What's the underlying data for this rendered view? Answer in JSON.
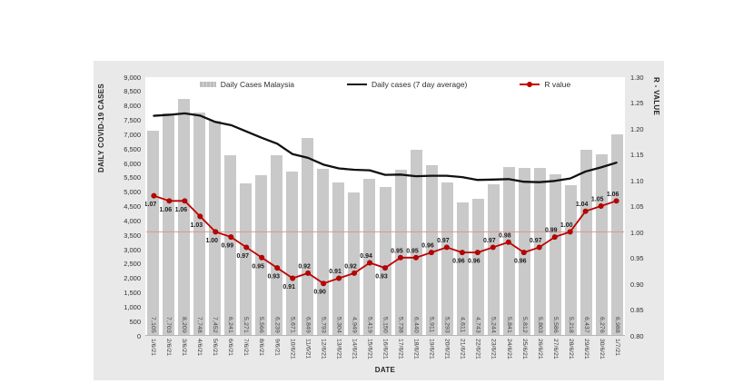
{
  "chart": {
    "y_left_title": "DAILY COVID-19 CASES",
    "y_right_title": "R - VALUE",
    "x_title": "DATE",
    "legend": [
      {
        "label": "Daily Cases Malaysia",
        "type": "bar-swatch"
      },
      {
        "label": "Daily cases (7 day average)",
        "type": "line"
      },
      {
        "label": "R value",
        "type": "line-marker"
      }
    ],
    "colors": {
      "panel_background": "#e9e9e9",
      "plot_background": "#ffffff",
      "bar": "#c9c9c9",
      "average_line": "#111111",
      "r_line": "#c00000",
      "reference_line": "#d99694"
    }
  },
  "chart_data": {
    "type": "bar",
    "categories": [
      "1/6/21",
      "2/6/21",
      "3/6/21",
      "4/6/21",
      "5/6/21",
      "6/6/21",
      "7/6/21",
      "8/6/21",
      "9/6/21",
      "10/6/21",
      "11/6/21",
      "12/6/21",
      "13/6/21",
      "14/6/21",
      "15/6/21",
      "16/6/21",
      "17/6/21",
      "18/6/21",
      "19/6/21",
      "20/6/21",
      "21/6/21",
      "22/6/21",
      "23/6/21",
      "24/6/21",
      "25/6/21",
      "26/6/21",
      "27/6/21",
      "28/6/21",
      "29/6/21",
      "30/6/21",
      "1/7/21"
    ],
    "series": [
      {
        "name": "Daily Cases Malaysia",
        "type": "bar",
        "axis": "left",
        "values": [
          7105,
          7703,
          8209,
          7748,
          7452,
          6241,
          5271,
          5566,
          6239,
          5671,
          6849,
          5793,
          5304,
          4949,
          5419,
          5150,
          5738,
          6440,
          5911,
          5293,
          4611,
          4743,
          5244,
          5841,
          5812,
          5803,
          5586,
          5218,
          6437,
          6276,
          6988
        ]
      },
      {
        "name": "Daily cases (7 day average)",
        "type": "line",
        "axis": "left",
        "values": [
          7653,
          7685,
          7736,
          7658,
          7434,
          7326,
          7104,
          6884,
          6675,
          6313,
          6184,
          5947,
          5813,
          5767,
          5746,
          5591,
          5600,
          5542,
          5559,
          5557,
          5509,
          5412,
          5426,
          5440,
          5351,
          5335,
          5377,
          5464,
          5706,
          5853,
          6017
        ]
      },
      {
        "name": "R value",
        "type": "line",
        "axis": "right",
        "values": [
          1.07,
          1.06,
          1.06,
          1.03,
          1.0,
          0.99,
          0.97,
          0.95,
          0.93,
          0.91,
          0.92,
          0.9,
          0.91,
          0.92,
          0.94,
          0.93,
          0.95,
          0.95,
          0.96,
          0.97,
          0.96,
          0.96,
          0.97,
          0.98,
          0.96,
          0.97,
          0.99,
          1.0,
          1.04,
          1.05,
          1.06
        ],
        "label_side": [
          "below",
          "below",
          "below",
          "below",
          "below",
          "below",
          "below",
          "below",
          "below",
          "below",
          "above",
          "below",
          "above",
          "above",
          "above",
          "below",
          "above",
          "above",
          "above",
          "above",
          "below",
          "below",
          "above",
          "above",
          "below",
          "above",
          "above",
          "above",
          "above",
          "above",
          "above"
        ]
      }
    ],
    "y_left": {
      "min": 0,
      "max": 9000,
      "step": 500,
      "label": "DAILY COVID-19 CASES"
    },
    "y_right": {
      "min": 0.8,
      "max": 1.3,
      "step": 0.05,
      "label": "R - VALUE"
    },
    "xlabel": "DATE",
    "reference_line": {
      "axis": "right",
      "value": 1.0
    },
    "grid": false,
    "legend_position": "top-inside",
    "bar_value_labels": "rotated-inside-bottom",
    "x_tick_rotation": "vertical"
  }
}
